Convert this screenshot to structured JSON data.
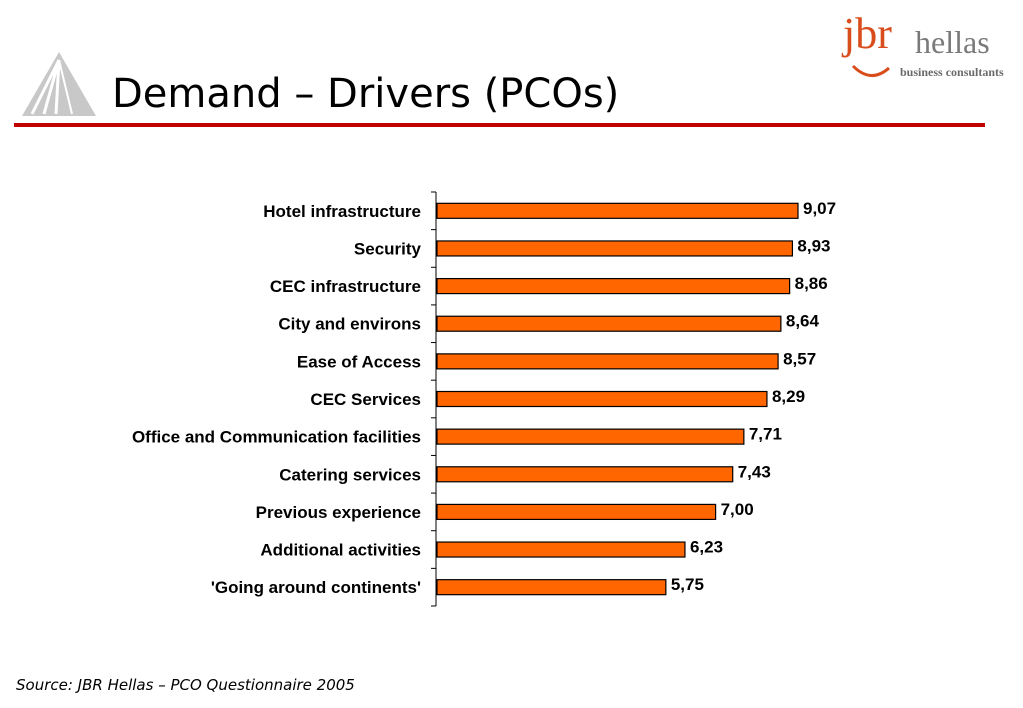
{
  "slide": {
    "title": "Demand – Drivers (PCOs)",
    "source": "Source: JBR Hellas – PCO Questionnaire 2005",
    "brand": {
      "name": "jbr",
      "name_suffix": "hellas",
      "tagline": "business consultants"
    }
  },
  "colors": {
    "bar": "#ff6600",
    "rule": "#c00000",
    "brand": "#d84d1b"
  },
  "icons": {
    "left_logo": "mountain-triangle-logo",
    "brand_mark": "swoosh"
  },
  "chart_data": {
    "type": "bar",
    "orientation": "horizontal",
    "categories": [
      "Hotel infrastructure",
      "Security",
      "CEC infrastructure",
      "City and environs",
      "Ease of Access",
      "CEC Services",
      "Office and Communication facilities",
      "Catering services",
      "Previous experience",
      "Additional activities",
      "'Going around continents'"
    ],
    "values": [
      9.07,
      8.93,
      8.86,
      8.64,
      8.57,
      8.29,
      7.71,
      7.43,
      7.0,
      6.23,
      5.75
    ],
    "value_labels": [
      "9,07",
      "8,93",
      "8,86",
      "8,64",
      "8,57",
      "8,29",
      "7,71",
      "7,43",
      "7,00",
      "6,23",
      "5,75"
    ],
    "title": "",
    "xlabel": "",
    "ylabel": "",
    "xlim": [
      0,
      10
    ],
    "grid": false,
    "legend": "none"
  }
}
